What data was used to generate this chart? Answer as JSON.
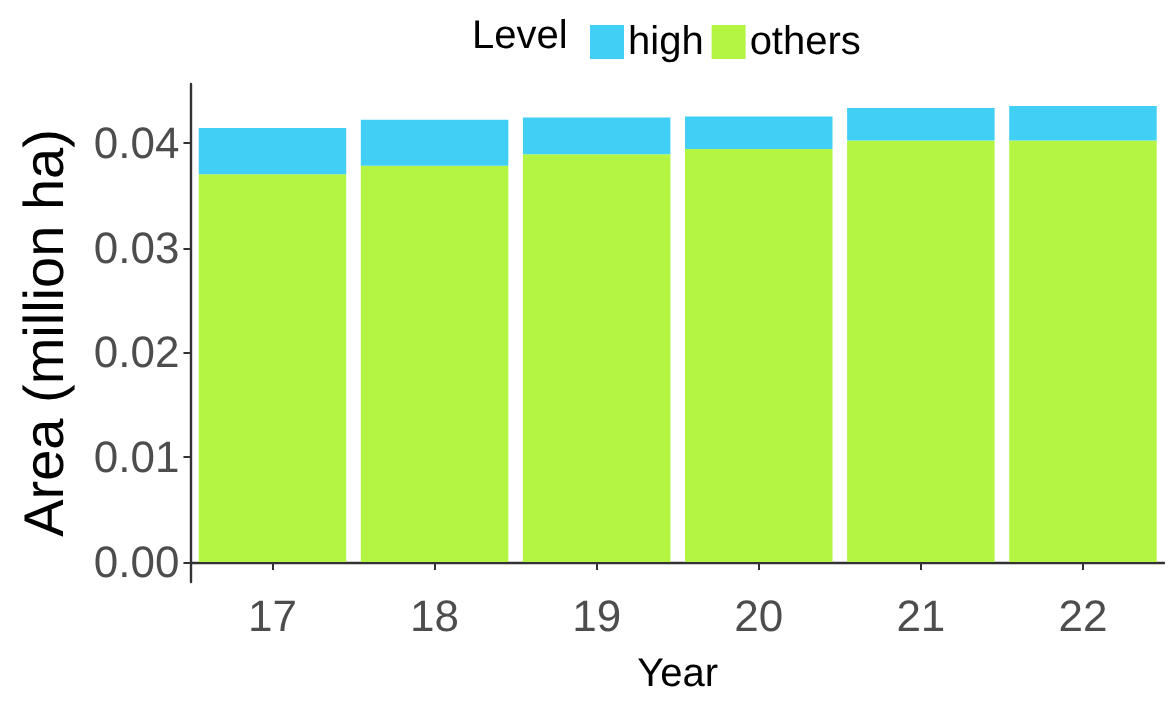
{
  "chart_data": {
    "type": "bar",
    "stacked": true,
    "xlabel": "Year",
    "ylabel": "Area (million ha)",
    "legend_title": "Level",
    "legend": "top",
    "grid": false,
    "categories": [
      "17",
      "18",
      "19",
      "20",
      "21",
      "22"
    ],
    "series": [
      {
        "name": "others",
        "color": "#b3f542",
        "values": [
          0.037,
          0.0378,
          0.0389,
          0.0394,
          0.0402,
          0.0402
        ]
      },
      {
        "name": "high",
        "color": "#42cff5",
        "values": [
          0.0044,
          0.0044,
          0.0035,
          0.0031,
          0.0031,
          0.0033
        ]
      }
    ],
    "ylim": [
      -0.0019,
      0.0456
    ],
    "yticks": [
      {
        "value": 0,
        "label": "0.00"
      },
      {
        "value": 0.01,
        "label": "0.01"
      },
      {
        "value": 0.02,
        "label": "0.02"
      },
      {
        "value": 0.03,
        "label": "0.03"
      },
      {
        "value": 0.04,
        "label": "0.04"
      }
    ]
  }
}
